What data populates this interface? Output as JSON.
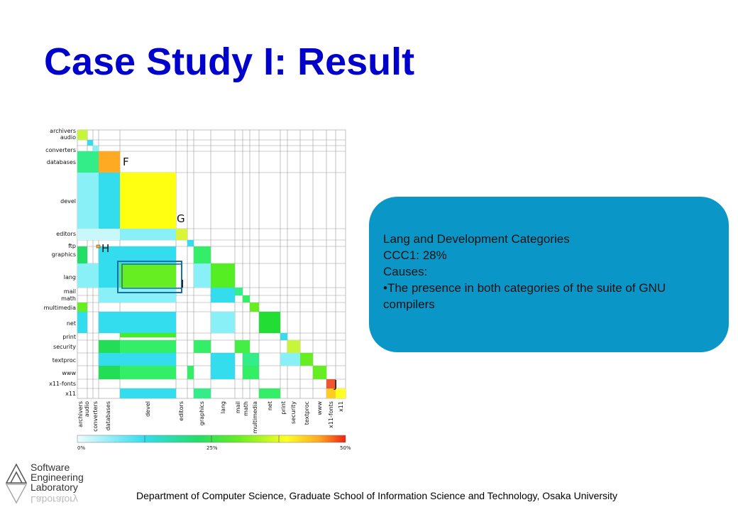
{
  "slide": {
    "title": "Case Study I: Result",
    "footer": "Department of Computer Science, Graduate School of Information Science and Technology, Osaka University"
  },
  "figure": {
    "row_labels": [
      "archivers",
      "audio",
      "converters",
      "databases",
      "devel",
      "editors",
      "ftp",
      "graphics",
      "lang",
      "mail",
      "math",
      "multimedia",
      "net",
      "print",
      "security",
      "textproc",
      "www",
      "x11-fonts",
      "x11"
    ],
    "col_labels": [
      "archivers",
      "audio",
      "converters",
      "databases",
      "devel",
      "editors",
      "graphics",
      "lang",
      "mail",
      "math",
      "multimedia",
      "net",
      "print",
      "security",
      "textproc",
      "www",
      "x11-fonts",
      "x11"
    ],
    "annotations": [
      "F",
      "G",
      "H",
      "I",
      "J"
    ],
    "colorbar_ticks": [
      "0%",
      "25%",
      "50%"
    ]
  },
  "callout": {
    "lines": [
      "Lang and Development Categories",
      "CCC1: 28%",
      "Causes:",
      "•The presence in both categories of the suite of GNU compilers"
    ]
  },
  "logo": {
    "lines": [
      "Software",
      "Engineering",
      "Laboratory"
    ]
  },
  "colors": {
    "title": "#0000cc",
    "callout_bg": "#0b96c8"
  }
}
